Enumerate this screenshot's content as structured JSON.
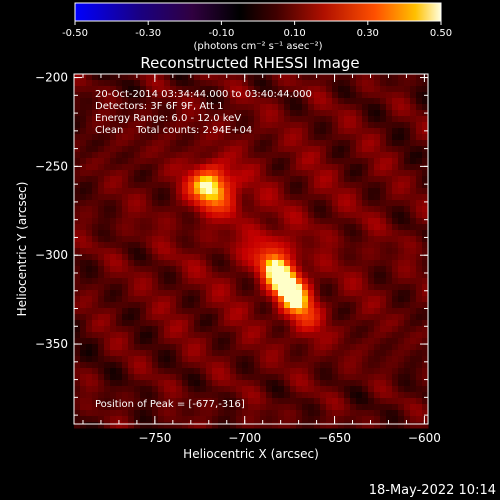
{
  "chart_data": {
    "type": "heatmap",
    "title": "Reconstructed RHESSI Image",
    "xlabel": "Heliocentric X (arcsec)",
    "ylabel": "Heliocentric Y (arcsec)",
    "xlim": [
      -795,
      -598
    ],
    "ylim": [
      -395,
      -198
    ],
    "x_ticks": [
      -750,
      -700,
      -650,
      -600
    ],
    "y_ticks": [
      -200,
      -250,
      -300,
      -350
    ],
    "colorbar": {
      "range": [
        -0.5,
        0.5
      ],
      "ticks": [
        "-0.50",
        "-0.30",
        "-0.10",
        "0.10",
        "0.30",
        "0.50"
      ],
      "unit_label": "(photons cm⁻² s⁻¹ asec⁻²)"
    },
    "info_lines": [
      "20-Oct-2014 03:34:44.000 to 03:40:44.000",
      "Detectors: 3F 6F 9F, Att 1",
      "Energy Range: 6.0 - 12.0 keV",
      "Clean    Total counts: 2.94E+04"
    ],
    "peak_label": "Position of Peak = [-677,-316]",
    "sources": [
      {
        "x": -719,
        "y": -261,
        "value": 0.42
      },
      {
        "x": -677,
        "y": -316,
        "value": 0.5
      }
    ],
    "background_level": 0.14,
    "colormap": "red-temperature",
    "timestamp": "18-May-2022 10:14"
  }
}
